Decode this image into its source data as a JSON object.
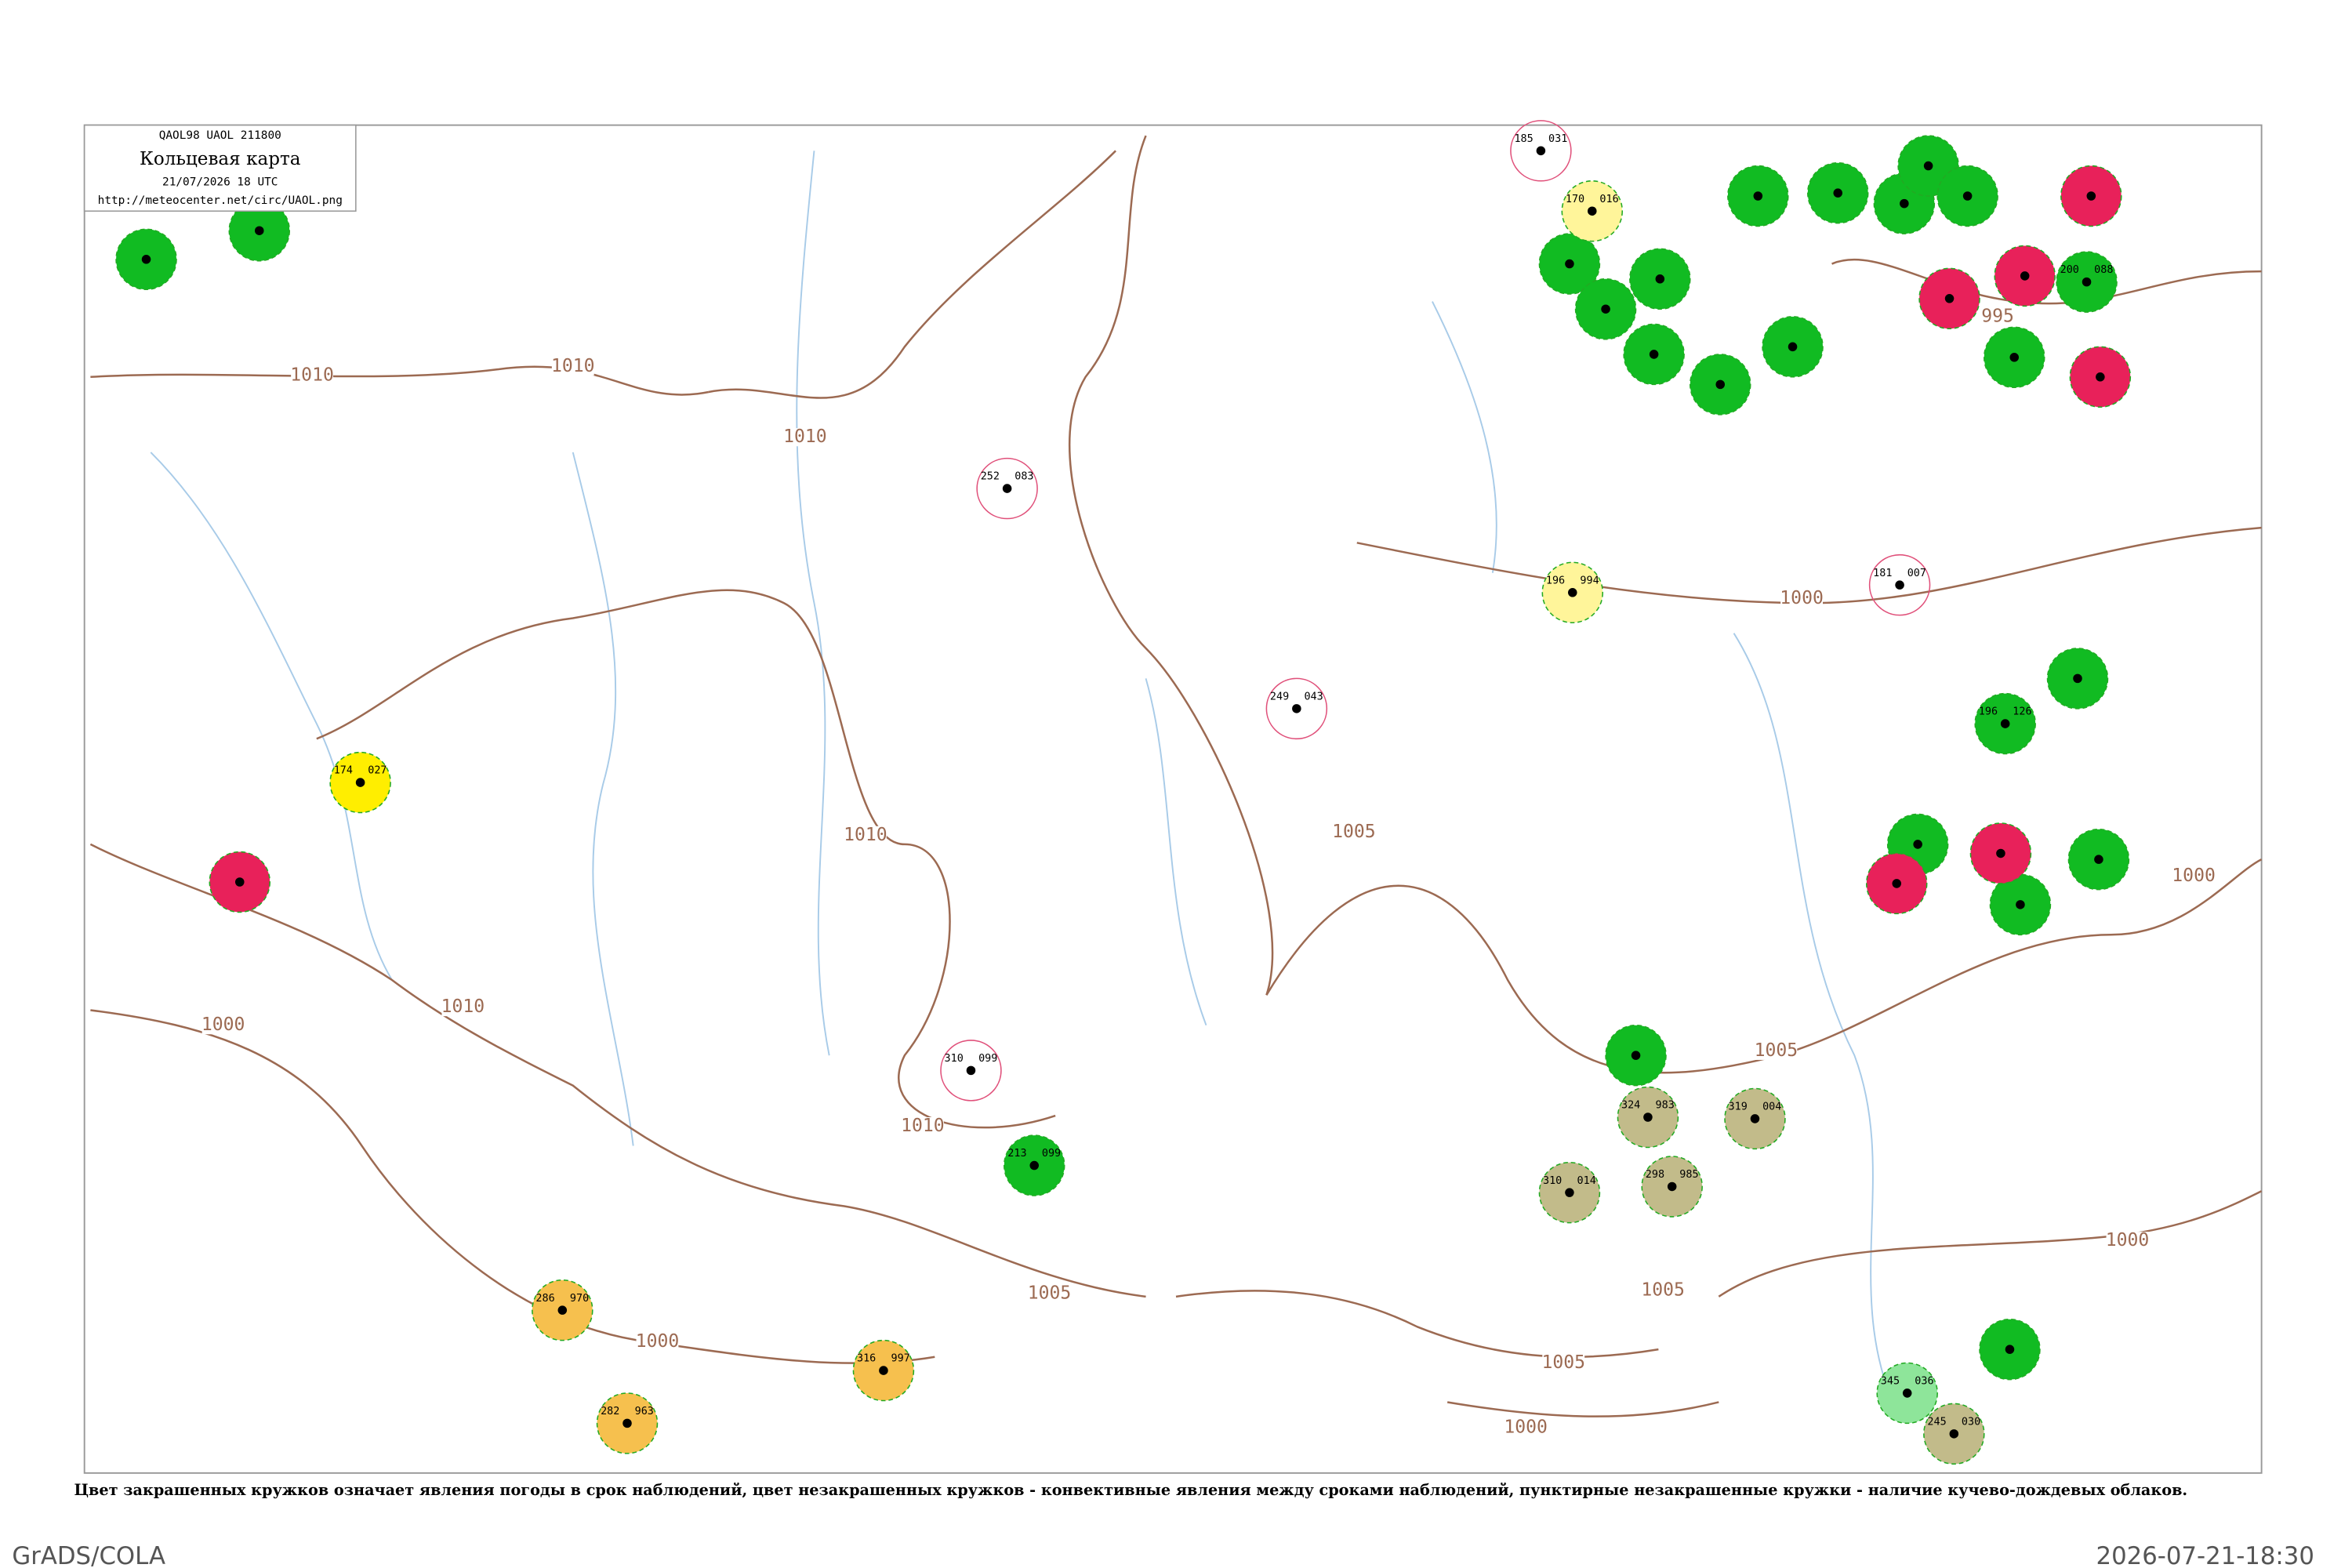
{
  "header": {
    "code": "QAOL98 UAOL 211800",
    "title": "Кольцевая карта",
    "time": "21/07/2026 18 UTC",
    "url": "http://meteocenter.net/circ/UAOL.png"
  },
  "isobars": [
    "1010",
    "1010",
    "1010",
    "1010",
    "1010",
    "1000",
    "1010",
    "1005",
    "1000",
    "1005",
    "1000",
    "995",
    "1000",
    "1005",
    "1000",
    "1005",
    "1005",
    "1000"
  ],
  "stations": [
    {
      "p": "286",
      "c": "970"
    },
    {
      "p": "316",
      "c": "997"
    },
    {
      "p": "282",
      "c": "963"
    },
    {
      "p": "174",
      "c": "027"
    },
    {
      "p": "170",
      "c": "016"
    },
    {
      "p": "196",
      "c": "994"
    },
    {
      "p": "324",
      "c": "983"
    },
    {
      "p": "319",
      "c": "004"
    },
    {
      "p": "310",
      "c": "014"
    },
    {
      "p": "298",
      "c": "985"
    },
    {
      "p": "245",
      "c": "030"
    },
    {
      "p": "345",
      "c": "036"
    },
    {
      "p": "213",
      "c": "099"
    },
    {
      "p": "200",
      "c": "088"
    },
    {
      "p": "185",
      "c": "031"
    },
    {
      "p": "181",
      "c": "007"
    },
    {
      "p": "196",
      "c": "126"
    },
    {
      "p": "310",
      "c": "099"
    },
    {
      "p": "252",
      "c": "083"
    },
    {
      "p": "249",
      "c": "043"
    }
  ],
  "caption": "Цвет закрашенных кружков означает явления погоды в срок наблюдений, цвет незакрашенных кружков - конвективные явления между сроками наблюдений, пунктирные незакрашенные кружки - наличие кучево-дождевых облаков.",
  "footer": {
    "left": "GrADS/COLA",
    "right": "2026-07-21-18:30"
  }
}
